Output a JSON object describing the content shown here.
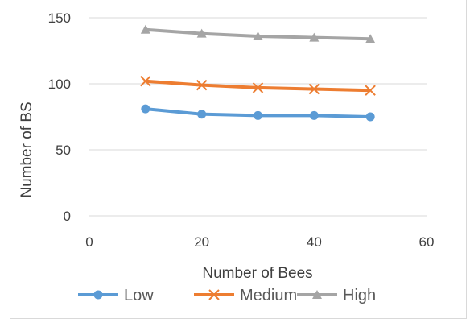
{
  "chart_data": {
    "type": "line",
    "title": "",
    "xlabel": "Number of Bees",
    "ylabel": "Number of BS",
    "xlim": [
      0,
      60
    ],
    "ylim": [
      0,
      150
    ],
    "x_ticks": [
      0,
      20,
      40,
      60
    ],
    "y_ticks": [
      0,
      50,
      100,
      150
    ],
    "grid": "horizontal",
    "legend_position": "bottom",
    "series": [
      {
        "name": "Low",
        "color": "#5b9bd5",
        "marker": "circle",
        "x": [
          10,
          20,
          30,
          40,
          50
        ],
        "values": [
          81,
          77,
          76,
          76,
          75
        ]
      },
      {
        "name": "Medium",
        "color": "#ed7d31",
        "marker": "x",
        "x": [
          10,
          20,
          30,
          40,
          50
        ],
        "values": [
          102,
          99,
          97,
          96,
          95
        ]
      },
      {
        "name": "High",
        "color": "#a5a5a5",
        "marker": "triangle",
        "x": [
          10,
          20,
          30,
          40,
          50
        ],
        "values": [
          141,
          138,
          136,
          135,
          134
        ]
      }
    ]
  }
}
